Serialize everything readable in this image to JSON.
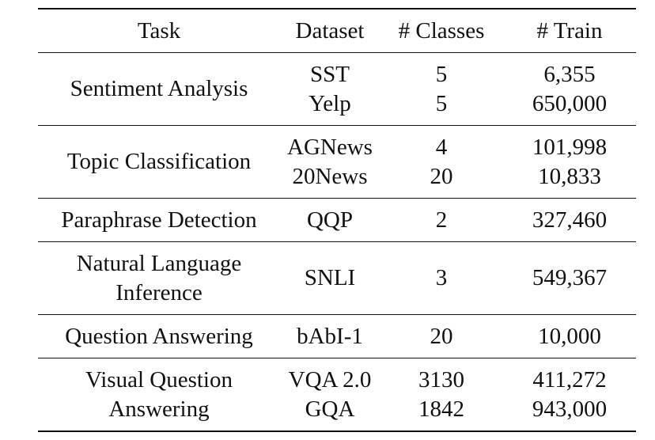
{
  "table": {
    "headers": {
      "task": "Task",
      "dataset": "Dataset",
      "classes": "# Classes",
      "train": "# Train"
    },
    "groups": [
      {
        "task_lines": [
          "Sentiment Analysis"
        ],
        "datasets": [
          "SST",
          "Yelp"
        ],
        "classes": [
          "5",
          "5"
        ],
        "train": [
          "6,355",
          "650,000"
        ]
      },
      {
        "task_lines": [
          "Topic Classification"
        ],
        "datasets": [
          "AGNews",
          "20News"
        ],
        "classes": [
          "4",
          "20"
        ],
        "train": [
          "101,998",
          "10,833"
        ]
      },
      {
        "task_lines": [
          "Paraphrase Detection"
        ],
        "datasets": [
          "QQP"
        ],
        "classes": [
          "2"
        ],
        "train": [
          "327,460"
        ]
      },
      {
        "task_lines": [
          "Natural Language",
          "Inference"
        ],
        "datasets": [
          "SNLI"
        ],
        "classes": [
          "3"
        ],
        "train": [
          "549,367"
        ]
      },
      {
        "task_lines": [
          "Question Answering"
        ],
        "datasets": [
          "bAbI-1"
        ],
        "classes": [
          "20"
        ],
        "train": [
          "10,000"
        ]
      },
      {
        "task_lines": [
          "Visual Question",
          "Answering"
        ],
        "datasets": [
          "VQA 2.0",
          "GQA"
        ],
        "classes": [
          "3130",
          "1842"
        ],
        "train": [
          "411,272",
          "943,000"
        ]
      }
    ]
  }
}
